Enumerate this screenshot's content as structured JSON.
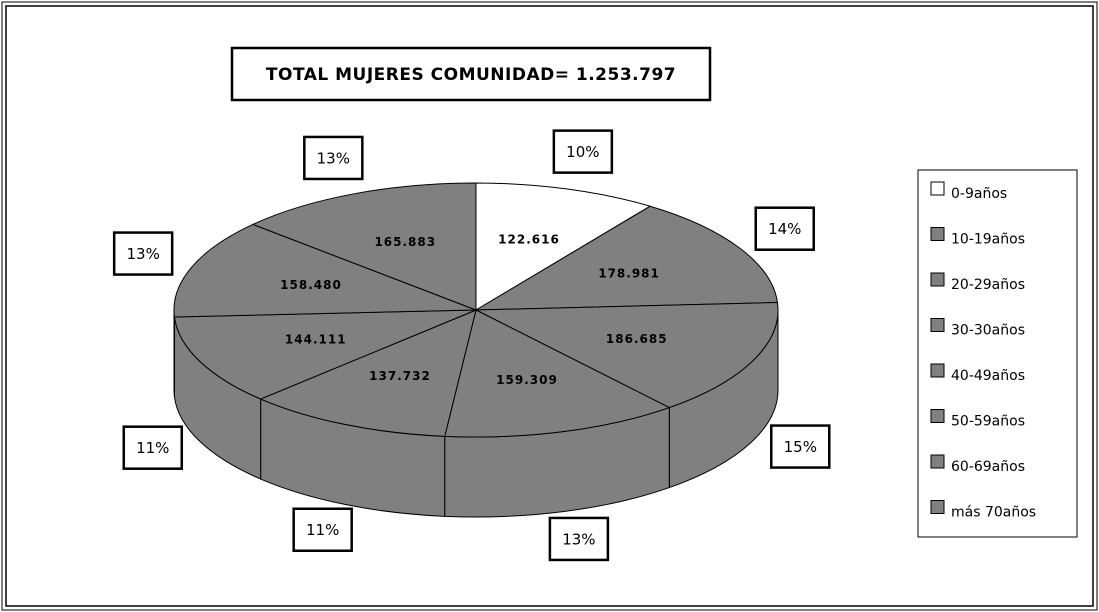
{
  "chart_data": {
    "type": "pie3d",
    "title": "TOTAL MUJERES COMUNIDAD= 1.253.797",
    "categories": [
      "0-9años",
      "10-19años",
      "20-29años",
      "30-30años",
      "40-49años",
      "50-59años",
      "60-69años",
      "más 70años"
    ],
    "values": [
      122616,
      178981,
      186685,
      159309,
      137732,
      144111,
      158480,
      165883
    ],
    "value_labels": [
      "122.616",
      "178.981",
      "186.685",
      "159.309",
      "137.732",
      "144.111",
      "158.480",
      "165.883"
    ],
    "percent_labels": [
      "10%",
      "14%",
      "15%",
      "13%",
      "11%",
      "11%",
      "13%",
      "13%"
    ],
    "colors": [
      "#ffffff",
      "#808080",
      "#808080",
      "#808080",
      "#808080",
      "#808080",
      "#808080",
      "#808080"
    ],
    "legend": "right"
  }
}
